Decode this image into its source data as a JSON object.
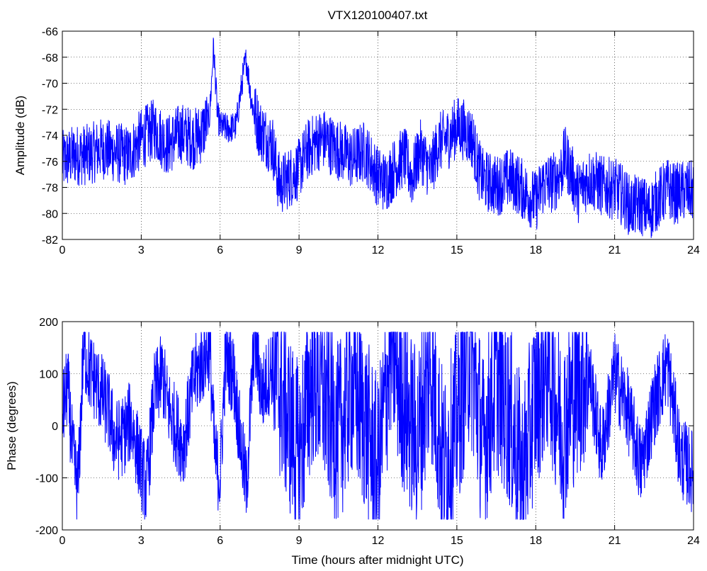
{
  "figure": {
    "title": "VTX120100407.txt"
  },
  "chart_data": [
    {
      "type": "line",
      "title": "VTX120100407.txt",
      "xlabel": "",
      "ylabel": "Amplitude (dB)",
      "xlim": [
        0,
        24
      ],
      "ylim": [
        -82,
        -66
      ],
      "xticks": [
        0,
        3,
        6,
        9,
        12,
        15,
        18,
        21,
        24
      ],
      "yticks": [
        -66,
        -68,
        -70,
        -72,
        -74,
        -76,
        -78,
        -80,
        -82
      ],
      "grid": true,
      "line_color": "#0000ff",
      "series": [
        {
          "x": [
            0,
            0.5,
            1,
            1.5,
            2,
            2.5,
            3,
            3.5,
            4,
            4.5,
            5,
            5.3,
            5.6,
            5.75,
            5.9,
            6.0,
            6.3,
            6.6,
            6.9,
            7.0,
            7.2,
            7.5,
            8.0,
            8.2,
            8.3,
            8.6,
            9.0,
            9.3,
            9.7,
            10.0,
            10.3,
            10.6,
            11.0,
            11.5,
            12.0,
            12.3,
            12.6,
            13.0,
            13.3,
            13.6,
            14.0,
            14.3,
            14.7,
            15.0,
            15.3,
            15.6,
            15.8,
            16.0,
            16.5,
            17.0,
            17.3,
            17.6,
            18.0,
            18.3,
            18.7,
            19.0,
            19.1,
            19.3,
            19.6,
            20.0,
            20.3,
            20.6,
            21.0,
            21.3,
            21.6,
            22.0,
            22.3,
            22.6,
            23.0,
            23.3,
            23.6,
            24.0
          ],
          "y": [
            -76,
            -75.5,
            -75.5,
            -75,
            -75.3,
            -75.6,
            -74.3,
            -73.5,
            -74.8,
            -73.8,
            -74.3,
            -73.8,
            -72.5,
            -67.2,
            -72.5,
            -73.3,
            -73.5,
            -73.3,
            -69,
            -68.2,
            -71.5,
            -73.5,
            -74.8,
            -77.4,
            -77.8,
            -77.3,
            -76.6,
            -75.2,
            -74.4,
            -74.3,
            -74.9,
            -75.2,
            -75.8,
            -75.2,
            -77.2,
            -77.6,
            -76.6,
            -75.6,
            -77.3,
            -75.1,
            -76.8,
            -74.6,
            -74.2,
            -73.3,
            -73.6,
            -74.3,
            -76.4,
            -77.4,
            -77.9,
            -77.3,
            -77.7,
            -78.4,
            -79.1,
            -77.7,
            -77.6,
            -76.6,
            -75.6,
            -76.6,
            -78.4,
            -77.3,
            -77.6,
            -78.0,
            -78.1,
            -78.6,
            -79.5,
            -79.3,
            -79.9,
            -79.0,
            -78.1,
            -78.5,
            -78.3,
            -78.3
          ]
        }
      ]
    },
    {
      "type": "line",
      "title": "",
      "xlabel": "Time (hours after midnight UTC)",
      "ylabel": "Phase (degrees)",
      "xlim": [
        0,
        24
      ],
      "ylim": [
        -200,
        200
      ],
      "xticks": [
        0,
        3,
        6,
        9,
        12,
        15,
        18,
        21,
        24
      ],
      "yticks": [
        200,
        100,
        0,
        -100,
        -200
      ],
      "grid": true,
      "line_color": "#0000ff",
      "phase_wrap": [
        -180,
        180
      ],
      "series": [
        {
          "x": [
            0,
            0.2,
            0.4,
            0.6,
            0.8,
            1.0,
            1.2,
            1.5,
            1.8,
            2.0,
            2.3,
            2.6,
            3.0,
            3.2,
            3.5,
            3.8,
            4.0,
            4.3,
            4.6,
            5.0,
            5.3,
            5.6,
            5.8,
            6.0,
            6.2,
            6.5,
            6.8,
            7.0,
            7.3,
            7.6,
            8.0,
            8.5,
            9.0,
            9.5,
            10.0,
            10.5,
            11.0,
            11.5,
            12.0,
            12.5,
            13.0,
            13.5,
            14.0,
            14.5,
            15.0,
            15.5,
            16.0,
            16.5,
            17.0,
            17.5,
            18.0,
            18.5,
            19.0,
            19.5,
            20.0,
            20.5,
            21.0,
            21.5,
            22.0,
            22.5,
            23.0,
            23.5,
            24.0
          ],
          "y": [
            20,
            80,
            -60,
            -120,
            150,
            110,
            90,
            60,
            20,
            -30,
            -20,
            10,
            -80,
            -120,
            60,
            100,
            40,
            0,
            -40,
            90,
            120,
            150,
            -60,
            -100,
            130,
            100,
            -40,
            -120,
            170,
            60,
            120,
            30,
            -60,
            100,
            50,
            -20,
            80,
            10,
            -90,
            160,
            40,
            -30,
            120,
            -80,
            10,
            150,
            -40,
            90,
            20,
            -100,
            60,
            130,
            -10,
            70,
            110,
            -50,
            100,
            30,
            -80,
            40,
            120,
            -60,
            -90
          ]
        }
      ]
    }
  ]
}
